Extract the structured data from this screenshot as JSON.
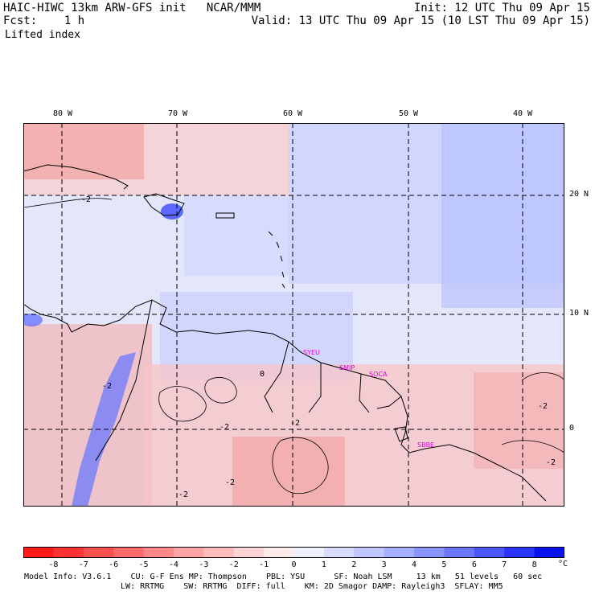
{
  "header": {
    "left_line1": "HAIC-HIWC 13km ARW-GFS init   NCAR/MMM",
    "left_line2": "Fcst:    1 h",
    "field_name": "Lifted index",
    "init": "Init: 12 UTC Thu 09 Apr 15",
    "valid": "Valid: 13 UTC Thu 09 Apr 15 (10 LST Thu 09 Apr 15)"
  },
  "map": {
    "lon_labels": [
      "80 W",
      "70 W",
      "60 W",
      "50 W",
      "40 W"
    ],
    "lat_labels": [
      "20 N",
      "10 N",
      "0"
    ],
    "contour_labels": [
      "-2",
      "-2",
      "-2",
      "-2",
      "-2",
      "-2",
      "0",
      "-2",
      "-2"
    ],
    "station_labels": [
      "SYEU",
      "SMJP",
      "SOCA",
      "SBBE"
    ],
    "station_color": "#e000e0",
    "land_outline_color": "#000000",
    "grid_line_color": "#000000",
    "grid_line_style": "dashed"
  },
  "colorbar": {
    "tick_labels": [
      "-8",
      "-7",
      "-6",
      "-5",
      "-4",
      "-3",
      "-2",
      "-1",
      "0",
      "1",
      "2",
      "3",
      "4",
      "5",
      "6",
      "7",
      "8"
    ],
    "unit": "°C",
    "colors": [
      "#ff1a1a",
      "#ff3333",
      "#ff5050",
      "#ff6a6a",
      "#ff8888",
      "#ffa4a4",
      "#ffbcbc",
      "#ffd4d4",
      "#ffeaea",
      "#eef0ff",
      "#d8dcff",
      "#c0c6ff",
      "#a6aeff",
      "#8a94ff",
      "#6c76ff",
      "#4c56ff",
      "#2a34ff",
      "#0a12ee"
    ]
  },
  "model_info": {
    "line1": "Model Info: V3.6.1    CU: G-F Ens MP: Thompson    PBL: YSU      SF: Noah LSM     13 km   51 levels   60 sec",
    "line2": "LW: RRTMG    SW: RRTMG  DIFF: full    KM: 2D Smagor DAMP: Rayleigh3  SFLAY: MM5"
  }
}
